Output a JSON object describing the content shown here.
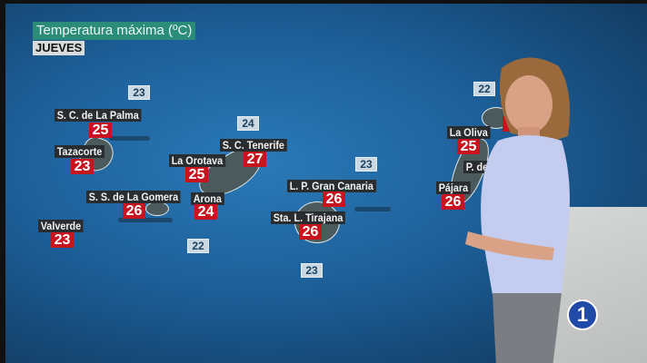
{
  "header": {
    "title": "Temperatura máxima (ºC)",
    "day": "JUEVES"
  },
  "sea_temperatures": [
    "23",
    "24",
    "23",
    "22",
    "23",
    "22"
  ],
  "cities": [
    {
      "name": "S. C. de La Palma",
      "temp": "25"
    },
    {
      "name": "Tazacorte",
      "temp": "23"
    },
    {
      "name": "La Orotava",
      "temp": "25"
    },
    {
      "name": "S. C. Tenerife",
      "temp": "27"
    },
    {
      "name": "S. S. de La Gomera",
      "temp": "26"
    },
    {
      "name": "Arona",
      "temp": "24"
    },
    {
      "name": "Valverde",
      "temp": "23"
    },
    {
      "name": "L. P. Gran Canaria",
      "temp": "26"
    },
    {
      "name": "Sta. L. Tirajana",
      "temp": "26"
    },
    {
      "name": "La Oliva",
      "temp": "25"
    },
    {
      "name": "P. del",
      "temp": ""
    },
    {
      "name": "Pájara",
      "temp": "26"
    }
  ],
  "channel_logo": "1",
  "colors": {
    "title_bg": "#2b8c79",
    "temp_bg": "#c8141e",
    "sea_bg": "#c9d8e2",
    "logo": "#1f4aa8"
  }
}
